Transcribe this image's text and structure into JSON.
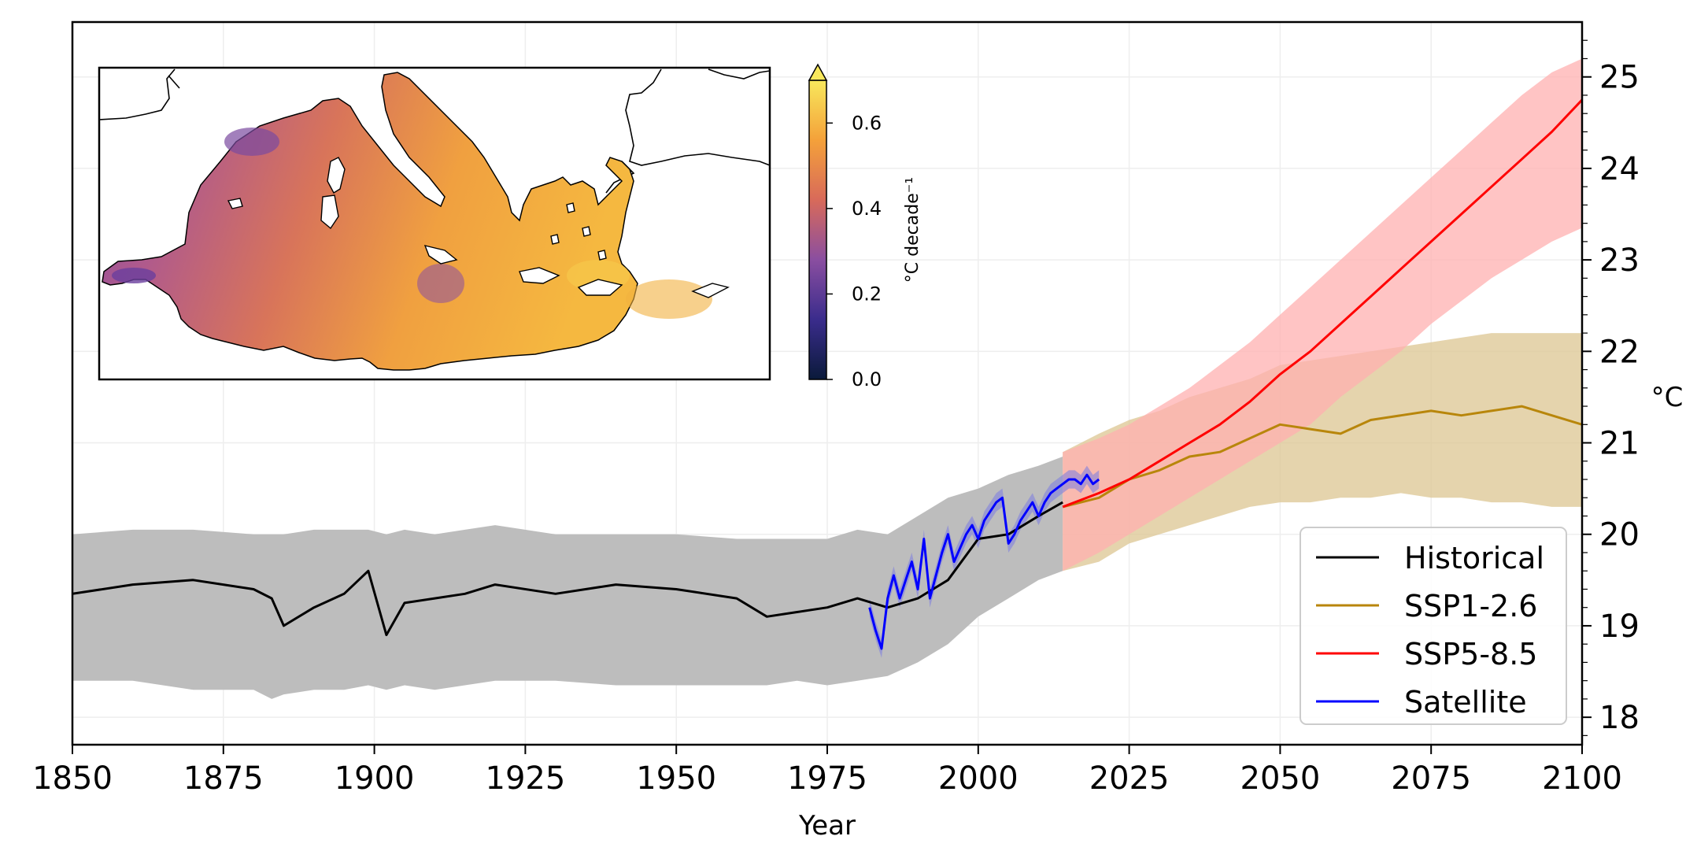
{
  "chart_data": {
    "type": "line",
    "title": "",
    "xlabel": "Year",
    "ylabel": "°C",
    "xlim": [
      1850,
      2100
    ],
    "ylim": [
      17.7,
      25.6
    ],
    "x_ticks": [
      1850,
      1875,
      1900,
      1925,
      1950,
      1975,
      2000,
      2025,
      2050,
      2075,
      2100
    ],
    "y_ticks": [
      18,
      19,
      20,
      21,
      22,
      23,
      24,
      25
    ],
    "y_axis_side": "right",
    "grid": true,
    "legend_position": "bottom-right",
    "series": [
      {
        "name": "Historical",
        "color": "#000000",
        "band_color": "#bdbdbd",
        "x": [
          1850,
          1860,
          1870,
          1880,
          1883,
          1885,
          1890,
          1895,
          1899,
          1902,
          1905,
          1910,
          1915,
          1920,
          1930,
          1940,
          1950,
          1960,
          1965,
          1970,
          1975,
          1980,
          1985,
          1990,
          1995,
          2000,
          2005,
          2010,
          2014
        ],
        "y": [
          19.35,
          19.45,
          19.5,
          19.4,
          19.3,
          19.0,
          19.2,
          19.35,
          19.6,
          18.9,
          19.25,
          19.3,
          19.35,
          19.45,
          19.35,
          19.45,
          19.4,
          19.3,
          19.1,
          19.15,
          19.2,
          19.3,
          19.2,
          19.3,
          19.5,
          19.95,
          20.0,
          20.2,
          20.35
        ],
        "band_lower": [
          18.4,
          18.4,
          18.3,
          18.3,
          18.2,
          18.25,
          18.3,
          18.3,
          18.35,
          18.3,
          18.35,
          18.3,
          18.35,
          18.4,
          18.4,
          18.35,
          18.35,
          18.35,
          18.35,
          18.4,
          18.35,
          18.4,
          18.45,
          18.6,
          18.8,
          19.1,
          19.3,
          19.5,
          19.6
        ],
        "band_upper": [
          20.0,
          20.05,
          20.05,
          20.0,
          20.0,
          20.0,
          20.05,
          20.05,
          20.05,
          20.0,
          20.05,
          20.0,
          20.05,
          20.1,
          20.0,
          20.0,
          20.0,
          19.95,
          19.95,
          19.95,
          19.95,
          20.05,
          20.0,
          20.2,
          20.4,
          20.5,
          20.65,
          20.75,
          20.85
        ]
      },
      {
        "name": "SSP1-2.6",
        "color": "#b8860b",
        "band_color": "#dcc691",
        "x": [
          2014,
          2020,
          2025,
          2030,
          2035,
          2040,
          2045,
          2050,
          2055,
          2060,
          2065,
          2070,
          2075,
          2080,
          2085,
          2090,
          2095,
          2100
        ],
        "y": [
          20.3,
          20.4,
          20.6,
          20.7,
          20.85,
          20.9,
          21.05,
          21.2,
          21.15,
          21.1,
          21.25,
          21.3,
          21.35,
          21.3,
          21.35,
          21.4,
          21.3,
          21.2
        ],
        "band_lower": [
          19.6,
          19.7,
          19.9,
          20.0,
          20.1,
          20.2,
          20.3,
          20.35,
          20.35,
          20.4,
          20.4,
          20.45,
          20.4,
          20.4,
          20.35,
          20.35,
          20.3,
          20.3
        ],
        "band_upper": [
          20.9,
          21.1,
          21.25,
          21.35,
          21.5,
          21.6,
          21.7,
          21.85,
          21.9,
          21.95,
          22.0,
          22.05,
          22.1,
          22.15,
          22.2,
          22.2,
          22.2,
          22.2
        ]
      },
      {
        "name": "SSP5-8.5",
        "color": "#ff0000",
        "band_color": "#ffb0b0",
        "x": [
          2014,
          2020,
          2025,
          2030,
          2035,
          2040,
          2045,
          2050,
          2055,
          2060,
          2065,
          2070,
          2075,
          2080,
          2085,
          2090,
          2095,
          2100
        ],
        "y": [
          20.3,
          20.45,
          20.6,
          20.8,
          21.0,
          21.2,
          21.45,
          21.75,
          22.0,
          22.3,
          22.6,
          22.9,
          23.2,
          23.5,
          23.8,
          24.1,
          24.4,
          24.75
        ],
        "band_lower": [
          19.6,
          19.8,
          20.0,
          20.2,
          20.4,
          20.6,
          20.8,
          21.0,
          21.2,
          21.5,
          21.75,
          22.0,
          22.3,
          22.55,
          22.8,
          23.0,
          23.2,
          23.35
        ],
        "band_upper": [
          20.9,
          21.05,
          21.2,
          21.4,
          21.6,
          21.85,
          22.1,
          22.4,
          22.7,
          23.0,
          23.3,
          23.6,
          23.9,
          24.2,
          24.5,
          24.8,
          25.05,
          25.2
        ]
      },
      {
        "name": "Satellite",
        "color": "#0000ff",
        "band_color": "#8080dd",
        "x": [
          1982,
          1983,
          1984,
          1985,
          1986,
          1987,
          1988,
          1989,
          1990,
          1991,
          1992,
          1993,
          1994,
          1995,
          1996,
          1997,
          1998,
          1999,
          2000,
          2001,
          2002,
          2003,
          2004,
          2005,
          2006,
          2007,
          2008,
          2009,
          2010,
          2011,
          2012,
          2013,
          2014,
          2015,
          2016,
          2017,
          2018,
          2019,
          2020
        ],
        "y": [
          19.2,
          18.95,
          18.75,
          19.3,
          19.55,
          19.3,
          19.5,
          19.7,
          19.4,
          19.95,
          19.3,
          19.55,
          19.8,
          20.0,
          19.7,
          19.85,
          20.0,
          20.1,
          19.95,
          20.15,
          20.25,
          20.35,
          20.4,
          19.9,
          20.0,
          20.15,
          20.25,
          20.35,
          20.2,
          20.35,
          20.45,
          20.5,
          20.55,
          20.6,
          20.6,
          20.55,
          20.65,
          20.55,
          20.6
        ],
        "band_lower": [
          19.1,
          18.85,
          18.65,
          19.2,
          19.45,
          19.2,
          19.4,
          19.6,
          19.3,
          19.85,
          19.2,
          19.45,
          19.7,
          19.9,
          19.6,
          19.75,
          19.9,
          20.0,
          19.85,
          20.05,
          20.15,
          20.25,
          20.3,
          19.8,
          19.9,
          20.05,
          20.15,
          20.25,
          20.1,
          20.25,
          20.35,
          20.4,
          20.45,
          20.5,
          20.5,
          20.45,
          20.55,
          20.45,
          20.5
        ],
        "band_upper": [
          19.3,
          19.05,
          18.85,
          19.4,
          19.65,
          19.4,
          19.6,
          19.8,
          19.5,
          20.05,
          19.4,
          19.65,
          19.9,
          20.1,
          19.8,
          19.95,
          20.1,
          20.2,
          20.05,
          20.25,
          20.35,
          20.45,
          20.5,
          20.0,
          20.1,
          20.25,
          20.35,
          20.45,
          20.3,
          20.45,
          20.55,
          20.6,
          20.65,
          20.7,
          20.7,
          20.65,
          20.75,
          20.65,
          20.7
        ]
      }
    ],
    "inset": {
      "type": "heatmap",
      "description_of_region": "Mediterranean Sea map",
      "colorbar_label": "°C decade⁻¹",
      "colorbar_ticks": [
        "0.0",
        "0.2",
        "0.4",
        "0.6"
      ],
      "colorbar_range": [
        0.0,
        0.7
      ],
      "colorbar_colors": [
        "#0a1a3a",
        "#3a2c8c",
        "#8a4ea0",
        "#d86a5a",
        "#f4a13a",
        "#f8e85c"
      ]
    }
  }
}
